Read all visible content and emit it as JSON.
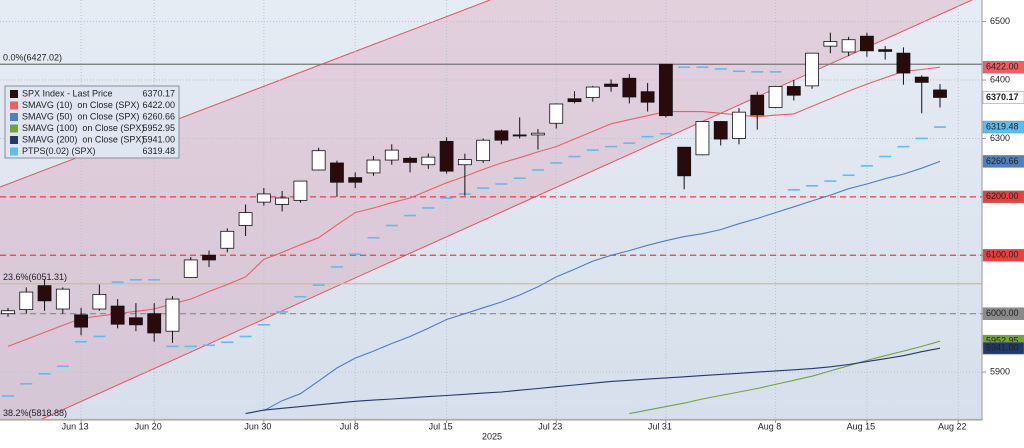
{
  "chart_data": {
    "type": "candlestick",
    "x_year_label": "2025",
    "categories": [
      null,
      null,
      null,
      null,
      "Jun 13",
      null,
      null,
      null,
      "Jun 20",
      null,
      null,
      null,
      null,
      null,
      "Jun 30",
      null,
      null,
      null,
      null,
      "Jul 8",
      null,
      null,
      null,
      null,
      "Jul 15",
      null,
      null,
      null,
      null,
      null,
      "Jul 23",
      null,
      null,
      null,
      null,
      null,
      "Jul 31",
      null,
      null,
      null,
      null,
      null,
      "Aug 8",
      null,
      null,
      null,
      null,
      "Aug 15",
      null,
      null,
      null,
      null,
      "Aug 22"
    ],
    "ohlc": {
      "name": "SPX Index - Last Price",
      "legend_value": "6370.17",
      "color": "#2a0b0b",
      "up_color": "#ffffff",
      "open": [
        6000,
        6007,
        6048,
        6008,
        5998,
        6008,
        6013,
        5993,
        6000,
        5970,
        6062,
        6100,
        6112,
        6151,
        6191,
        6187,
        6194,
        6246,
        6258,
        6233,
        6241,
        6263,
        6266,
        6255,
        6295,
        6255,
        6262,
        6313,
        6306,
        6306,
        6326,
        6368,
        6370,
        6393,
        6403,
        6380,
        6427,
        6285,
        6272,
        6329,
        6300,
        6374,
        6353,
        6389,
        6390,
        6458,
        6448,
        6475,
        6452,
        6446,
        6405,
        6383,
        null
      ],
      "high": [
        6010,
        6045,
        6059,
        6045,
        6010,
        6050,
        6025,
        6018,
        6018,
        6030,
        6097,
        6108,
        6146,
        6187,
        6215,
        6210,
        6227,
        6284,
        6262,
        6242,
        6270,
        6290,
        6269,
        6274,
        6302,
        6274,
        6300,
        6315,
        6336,
        6316,
        6360,
        6381,
        6390,
        6401,
        6410,
        6395,
        6427,
        6285,
        6330,
        6330,
        6352,
        6380,
        6390,
        6400,
        6446,
        6481,
        6474,
        6481,
        6458,
        6456,
        6408,
        6393,
        null
      ],
      "low": [
        5995,
        6000,
        6005,
        6000,
        5963,
        6005,
        5975,
        5970,
        5952,
        5950,
        6062,
        6080,
        6105,
        6133,
        6185,
        6175,
        6190,
        6245,
        6200,
        6215,
        6236,
        6255,
        6242,
        6248,
        6240,
        6202,
        6258,
        6290,
        6300,
        6281,
        6317,
        6360,
        6363,
        6380,
        6360,
        6346,
        6336,
        6213,
        6271,
        6288,
        6290,
        6315,
        6352,
        6365,
        6385,
        6446,
        6441,
        6440,
        6435,
        6392,
        6343,
        6353,
        null
      ],
      "close": [
        6005,
        6037,
        6022,
        6042,
        5977,
        6033,
        5982,
        5981,
        5967,
        6025,
        6092,
        6092,
        6141,
        6173,
        6205,
        6198,
        6227,
        6279,
        6225,
        6225,
        6263,
        6280,
        6259,
        6268,
        6244,
        6264,
        6297,
        6297,
        6305,
        6309,
        6359,
        6363,
        6388,
        6389,
        6371,
        6362,
        6339,
        6236,
        6329,
        6299,
        6345,
        6340,
        6389,
        6374,
        6446,
        6466,
        6469,
        6450,
        6449,
        6412,
        6396,
        6370.17,
        null
      ]
    },
    "series": [
      {
        "name": "SMAVG (10)  on Close (SPX)",
        "legend_value": "6422.00",
        "color": "#ee5f62",
        "style": "line",
        "values": [
          5944,
          5956,
          5968,
          5980,
          5992,
          5996,
          6000,
          6004,
          6008,
          6017,
          6025,
          6038,
          6050,
          6063,
          6093,
          6105,
          6118,
          6130,
          6152,
          6173,
          6181,
          6190,
          6198,
          6211,
          6224,
          6235,
          6247,
          6258,
          6267,
          6277,
          6286,
          6299,
          6312,
          6325,
          6332,
          6339,
          6346,
          6346,
          6346,
          6343,
          6340,
          6337,
          6340,
          6342,
          6355,
          6368,
          6381,
          6393,
          6404,
          6415,
          6418,
          6422,
          null
        ]
      },
      {
        "name": "SMAVG (50)  on Close (SPX)",
        "legend_value": "6260.66",
        "color": "#4f7fbf",
        "style": "line",
        "values": [
          null,
          null,
          null,
          null,
          null,
          null,
          null,
          null,
          null,
          null,
          null,
          null,
          null,
          null,
          5834,
          5851,
          5863,
          5885,
          5907,
          5924,
          5936,
          5949,
          5961,
          5975,
          5990,
          6000,
          6010,
          6020,
          6032,
          6046,
          6063,
          6076,
          6090,
          6100,
          6108,
          6117,
          6125,
          6132,
          6137,
          6144,
          6154,
          6163,
          6173,
          6183,
          6193,
          6203,
          6214,
          6222,
          6231,
          6239,
          6249,
          6260.66,
          null
        ]
      },
      {
        "name": "SMAVG (100)  on Close (SPX)",
        "legend_value": "5952.95",
        "color": "#72a43c",
        "style": "line",
        "values": [
          null,
          null,
          null,
          null,
          null,
          null,
          null,
          null,
          null,
          null,
          null,
          null,
          null,
          null,
          null,
          null,
          null,
          null,
          null,
          null,
          null,
          null,
          null,
          null,
          null,
          null,
          null,
          null,
          null,
          null,
          null,
          null,
          null,
          null,
          5829,
          5835,
          5841,
          5847,
          5854,
          5860,
          5866,
          5872,
          5879,
          5886,
          5893,
          5902,
          5911,
          5920,
          5928,
          5936,
          5944,
          5952.95,
          null
        ]
      },
      {
        "name": "SMAVG (200)  on Close (SPX)",
        "legend_value": "5941.00",
        "color": "#22396a",
        "style": "line",
        "values": [
          null,
          null,
          null,
          null,
          null,
          null,
          null,
          null,
          null,
          null,
          null,
          null,
          null,
          5829,
          5835,
          5838,
          5841,
          5844,
          5847,
          5850,
          5852,
          5854,
          5856,
          5858,
          5860,
          5862,
          5864,
          5866,
          5869,
          5872,
          5875,
          5878,
          5881,
          5884,
          5886,
          5888,
          5890,
          5892,
          5894,
          5896,
          5898,
          5900,
          5902,
          5904,
          5906,
          5909,
          5913,
          5918,
          5923,
          5928,
          5935,
          5941,
          null
        ]
      },
      {
        "name": "PTPS(0.02) (SPX)",
        "legend_value": "6319.48",
        "color": "#5dbcf2",
        "style": "dash",
        "values": [
          5859,
          5880,
          5897,
          5910,
          5952,
          5961,
          6054,
          6058,
          6058,
          5944,
          5944,
          5946,
          5951,
          5961,
          5981,
          6003,
          6029,
          6049,
          6080,
          6102,
          6130,
          6151,
          6168,
          6181,
          6198,
          6205,
          6215,
          6222,
          6232,
          6246,
          6258,
          6269,
          6280,
          6286,
          6292,
          6303,
          6308,
          6422,
          6422,
          6419,
          6415,
          6414,
          6414,
          6212,
          6219,
          6227,
          6237,
          6253,
          6269,
          6286,
          6300,
          6319.48,
          null
        ]
      }
    ],
    "levels": [
      {
        "label": "0.0%(6427.02)",
        "value": 6427.02,
        "color": "#777777",
        "text_color": "#e0605a"
      },
      {
        "label": "23.6%(6051.31)",
        "value": 6051.31,
        "color": "#c9bda0",
        "text_color": "#8a8a8a"
      },
      {
        "label": "38.2%(5818.88)",
        "value": 5818.88,
        "color": "#c9bda0",
        "text_color": "#e0605a"
      }
    ],
    "hlines": [
      {
        "value": 6200,
        "label": "6200.00",
        "color": "#e8403f"
      },
      {
        "value": 6100,
        "label": "6100.00",
        "color": "#e8403f"
      },
      {
        "value": 6000,
        "label": "6000.00",
        "color": "#8a8a8a"
      }
    ],
    "ylim": [
      5818,
      6537
    ],
    "yticks": [
      5900,
      6000,
      6100,
      6200,
      6300,
      6400,
      6500
    ],
    "grid": true
  }
}
